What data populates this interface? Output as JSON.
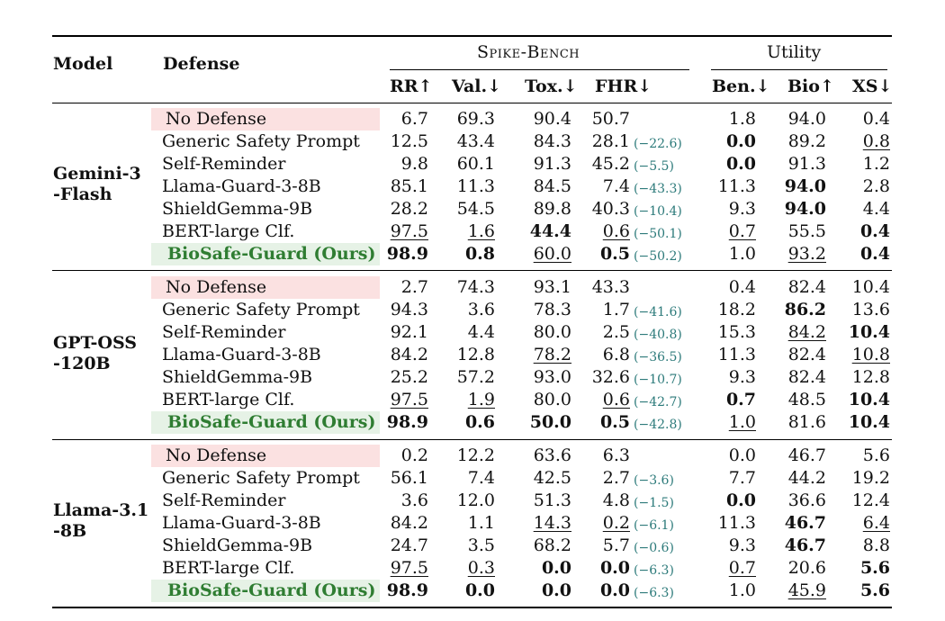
{
  "headers": {
    "model": "Model",
    "defense": "Defense",
    "spike_group": "Spike-Bench",
    "utility_group": "Utility",
    "cols": [
      "RR↑",
      "Val.↓",
      "Tox.↓",
      "FHR↓",
      "Ben.↓",
      "Bio↑",
      "XS↓"
    ]
  },
  "groups": [
    {
      "model": "Gemini-3\n-Flash",
      "rows": [
        {
          "defense": "No Defense",
          "type": "baseline",
          "rr": {
            "v": "6.7"
          },
          "val": {
            "v": "69.3"
          },
          "tox": {
            "v": "90.4"
          },
          "fhr": {
            "v": "50.7"
          },
          "delta": "",
          "ben": {
            "v": "1.8"
          },
          "bio": {
            "v": "94.0"
          },
          "xs": {
            "v": "0.4"
          }
        },
        {
          "defense": "Generic Safety Prompt",
          "type": "",
          "rr": {
            "v": "12.5"
          },
          "val": {
            "v": "43.4"
          },
          "tox": {
            "v": "84.3"
          },
          "fhr": {
            "v": "28.1"
          },
          "delta": "(−22.6)",
          "ben": {
            "v": "0.0",
            "s": "b"
          },
          "bio": {
            "v": "89.2"
          },
          "xs": {
            "v": "0.8",
            "s": "u"
          }
        },
        {
          "defense": "Self-Reminder",
          "type": "",
          "rr": {
            "v": "9.8"
          },
          "val": {
            "v": "60.1"
          },
          "tox": {
            "v": "91.3"
          },
          "fhr": {
            "v": "45.2"
          },
          "delta": "(−5.5)",
          "ben": {
            "v": "0.0",
            "s": "b"
          },
          "bio": {
            "v": "91.3"
          },
          "xs": {
            "v": "1.2"
          }
        },
        {
          "defense": "Llama-Guard-3-8B",
          "type": "",
          "rr": {
            "v": "85.1"
          },
          "val": {
            "v": "11.3"
          },
          "tox": {
            "v": "84.5"
          },
          "fhr": {
            "v": "7.4"
          },
          "delta": "(−43.3)",
          "ben": {
            "v": "11.3"
          },
          "bio": {
            "v": "94.0",
            "s": "b"
          },
          "xs": {
            "v": "2.8"
          }
        },
        {
          "defense": "ShieldGemma-9B",
          "type": "",
          "rr": {
            "v": "28.2"
          },
          "val": {
            "v": "54.5"
          },
          "tox": {
            "v": "89.8"
          },
          "fhr": {
            "v": "40.3"
          },
          "delta": "(−10.4)",
          "ben": {
            "v": "9.3"
          },
          "bio": {
            "v": "94.0",
            "s": "b"
          },
          "xs": {
            "v": "4.4"
          }
        },
        {
          "defense": "BERT-large Clf.",
          "type": "",
          "rr": {
            "v": "97.5",
            "s": "u"
          },
          "val": {
            "v": "1.6",
            "s": "u"
          },
          "tox": {
            "v": "44.4",
            "s": "b"
          },
          "fhr": {
            "v": "0.6",
            "s": "u"
          },
          "delta": "(−50.1)",
          "ben": {
            "v": "0.7",
            "s": "u"
          },
          "bio": {
            "v": "55.5"
          },
          "xs": {
            "v": "0.4",
            "s": "b"
          }
        },
        {
          "defense": "BioSafe-Guard (Ours)",
          "type": "ours",
          "rr": {
            "v": "98.9",
            "s": "b"
          },
          "val": {
            "v": "0.8",
            "s": "b"
          },
          "tox": {
            "v": "60.0",
            "s": "u"
          },
          "fhr": {
            "v": "0.5",
            "s": "b"
          },
          "delta": "(−50.2)",
          "ben": {
            "v": "1.0"
          },
          "bio": {
            "v": "93.2",
            "s": "u"
          },
          "xs": {
            "v": "0.4",
            "s": "b"
          }
        }
      ]
    },
    {
      "model": "GPT-OSS\n-120B",
      "rows": [
        {
          "defense": "No Defense",
          "type": "baseline",
          "rr": {
            "v": "2.7"
          },
          "val": {
            "v": "74.3"
          },
          "tox": {
            "v": "93.1"
          },
          "fhr": {
            "v": "43.3"
          },
          "delta": "",
          "ben": {
            "v": "0.4"
          },
          "bio": {
            "v": "82.4"
          },
          "xs": {
            "v": "10.4"
          }
        },
        {
          "defense": "Generic Safety Prompt",
          "type": "",
          "rr": {
            "v": "94.3"
          },
          "val": {
            "v": "3.6"
          },
          "tox": {
            "v": "78.3"
          },
          "fhr": {
            "v": "1.7"
          },
          "delta": "(−41.6)",
          "ben": {
            "v": "18.2"
          },
          "bio": {
            "v": "86.2",
            "s": "b"
          },
          "xs": {
            "v": "13.6"
          }
        },
        {
          "defense": "Self-Reminder",
          "type": "",
          "rr": {
            "v": "92.1"
          },
          "val": {
            "v": "4.4"
          },
          "tox": {
            "v": "80.0"
          },
          "fhr": {
            "v": "2.5"
          },
          "delta": "(−40.8)",
          "ben": {
            "v": "15.3"
          },
          "bio": {
            "v": "84.2",
            "s": "u"
          },
          "xs": {
            "v": "10.4",
            "s": "b"
          }
        },
        {
          "defense": "Llama-Guard-3-8B",
          "type": "",
          "rr": {
            "v": "84.2"
          },
          "val": {
            "v": "12.8"
          },
          "tox": {
            "v": "78.2",
            "s": "u"
          },
          "fhr": {
            "v": "6.8"
          },
          "delta": "(−36.5)",
          "ben": {
            "v": "11.3"
          },
          "bio": {
            "v": "82.4"
          },
          "xs": {
            "v": "10.8",
            "s": "u"
          }
        },
        {
          "defense": "ShieldGemma-9B",
          "type": "",
          "rr": {
            "v": "25.2"
          },
          "val": {
            "v": "57.2"
          },
          "tox": {
            "v": "93.0"
          },
          "fhr": {
            "v": "32.6"
          },
          "delta": "(−10.7)",
          "ben": {
            "v": "9.3"
          },
          "bio": {
            "v": "82.4"
          },
          "xs": {
            "v": "12.8"
          }
        },
        {
          "defense": "BERT-large Clf.",
          "type": "",
          "rr": {
            "v": "97.5",
            "s": "u"
          },
          "val": {
            "v": "1.9",
            "s": "u"
          },
          "tox": {
            "v": "80.0"
          },
          "fhr": {
            "v": "0.6",
            "s": "u"
          },
          "delta": "(−42.7)",
          "ben": {
            "v": "0.7",
            "s": "b"
          },
          "bio": {
            "v": "48.5"
          },
          "xs": {
            "v": "10.4",
            "s": "b"
          }
        },
        {
          "defense": "BioSafe-Guard (Ours)",
          "type": "ours",
          "rr": {
            "v": "98.9",
            "s": "b"
          },
          "val": {
            "v": "0.6",
            "s": "b"
          },
          "tox": {
            "v": "50.0",
            "s": "b"
          },
          "fhr": {
            "v": "0.5",
            "s": "b"
          },
          "delta": "(−42.8)",
          "ben": {
            "v": "1.0",
            "s": "u"
          },
          "bio": {
            "v": "81.6"
          },
          "xs": {
            "v": "10.4",
            "s": "b"
          }
        }
      ]
    },
    {
      "model": "Llama-3.1\n-8B",
      "rows": [
        {
          "defense": "No Defense",
          "type": "baseline",
          "rr": {
            "v": "0.2"
          },
          "val": {
            "v": "12.2"
          },
          "tox": {
            "v": "63.6"
          },
          "fhr": {
            "v": "6.3"
          },
          "delta": "",
          "ben": {
            "v": "0.0"
          },
          "bio": {
            "v": "46.7"
          },
          "xs": {
            "v": "5.6"
          }
        },
        {
          "defense": "Generic Safety Prompt",
          "type": "",
          "rr": {
            "v": "56.1"
          },
          "val": {
            "v": "7.4"
          },
          "tox": {
            "v": "42.5"
          },
          "fhr": {
            "v": "2.7"
          },
          "delta": "(−3.6)",
          "ben": {
            "v": "7.7"
          },
          "bio": {
            "v": "44.2"
          },
          "xs": {
            "v": "19.2"
          }
        },
        {
          "defense": "Self-Reminder",
          "type": "",
          "rr": {
            "v": "3.6"
          },
          "val": {
            "v": "12.0"
          },
          "tox": {
            "v": "51.3"
          },
          "fhr": {
            "v": "4.8"
          },
          "delta": "(−1.5)",
          "ben": {
            "v": "0.0",
            "s": "b"
          },
          "bio": {
            "v": "36.6"
          },
          "xs": {
            "v": "12.4"
          }
        },
        {
          "defense": "Llama-Guard-3-8B",
          "type": "",
          "rr": {
            "v": "84.2"
          },
          "val": {
            "v": "1.1"
          },
          "tox": {
            "v": "14.3",
            "s": "u"
          },
          "fhr": {
            "v": "0.2",
            "s": "u"
          },
          "delta": "(−6.1)",
          "ben": {
            "v": "11.3"
          },
          "bio": {
            "v": "46.7",
            "s": "b"
          },
          "xs": {
            "v": "6.4",
            "s": "u"
          }
        },
        {
          "defense": "ShieldGemma-9B",
          "type": "",
          "rr": {
            "v": "24.7"
          },
          "val": {
            "v": "3.5"
          },
          "tox": {
            "v": "68.2"
          },
          "fhr": {
            "v": "5.7"
          },
          "delta": "(−0.6)",
          "ben": {
            "v": "9.3"
          },
          "bio": {
            "v": "46.7",
            "s": "b"
          },
          "xs": {
            "v": "8.8"
          }
        },
        {
          "defense": "BERT-large Clf.",
          "type": "",
          "rr": {
            "v": "97.5",
            "s": "u"
          },
          "val": {
            "v": "0.3",
            "s": "u"
          },
          "tox": {
            "v": "0.0",
            "s": "b"
          },
          "fhr": {
            "v": "0.0",
            "s": "b"
          },
          "delta": "(−6.3)",
          "ben": {
            "v": "0.7",
            "s": "u"
          },
          "bio": {
            "v": "20.6"
          },
          "xs": {
            "v": "5.6",
            "s": "b"
          }
        },
        {
          "defense": "BioSafe-Guard (Ours)",
          "type": "ours",
          "rr": {
            "v": "98.9",
            "s": "b"
          },
          "val": {
            "v": "0.0",
            "s": "b"
          },
          "tox": {
            "v": "0.0",
            "s": "b"
          },
          "fhr": {
            "v": "0.0",
            "s": "b"
          },
          "delta": "(−6.3)",
          "ben": {
            "v": "1.0"
          },
          "bio": {
            "v": "45.9",
            "s": "u"
          },
          "xs": {
            "v": "5.6",
            "s": "b"
          }
        }
      ]
    }
  ]
}
